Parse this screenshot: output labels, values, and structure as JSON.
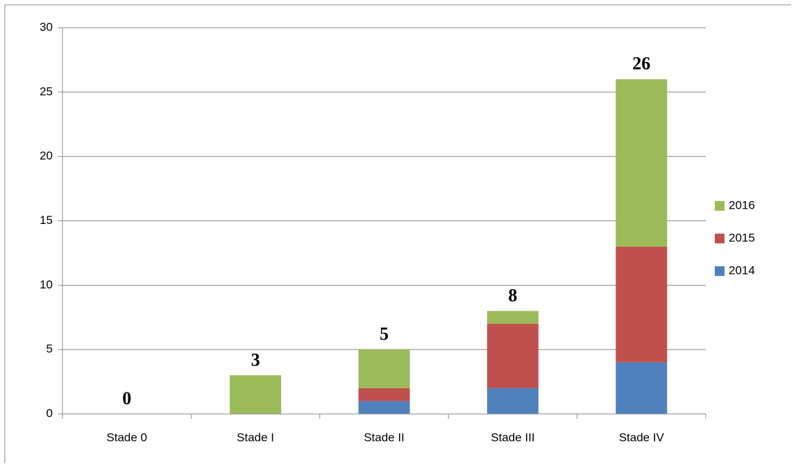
{
  "chart_data": {
    "type": "stacked_bar",
    "categories": [
      "Stade 0",
      "Stade I",
      "Stade II",
      "Stade III",
      "Stade IV"
    ],
    "series": [
      {
        "name": "2014",
        "color": "#4f81bd",
        "values": [
          0,
          0,
          1,
          2,
          4
        ]
      },
      {
        "name": "2015",
        "color": "#c0504d",
        "values": [
          0,
          0,
          1,
          5,
          9
        ]
      },
      {
        "name": "2016",
        "color": "#9bbb59",
        "values": [
          0,
          3,
          3,
          1,
          13
        ]
      }
    ],
    "totals": [
      0,
      3,
      5,
      8,
      26
    ],
    "ylim": [
      0,
      30
    ],
    "yticks": [
      0,
      5,
      10,
      15,
      20,
      25,
      30
    ],
    "grid": true,
    "legend": "right"
  }
}
